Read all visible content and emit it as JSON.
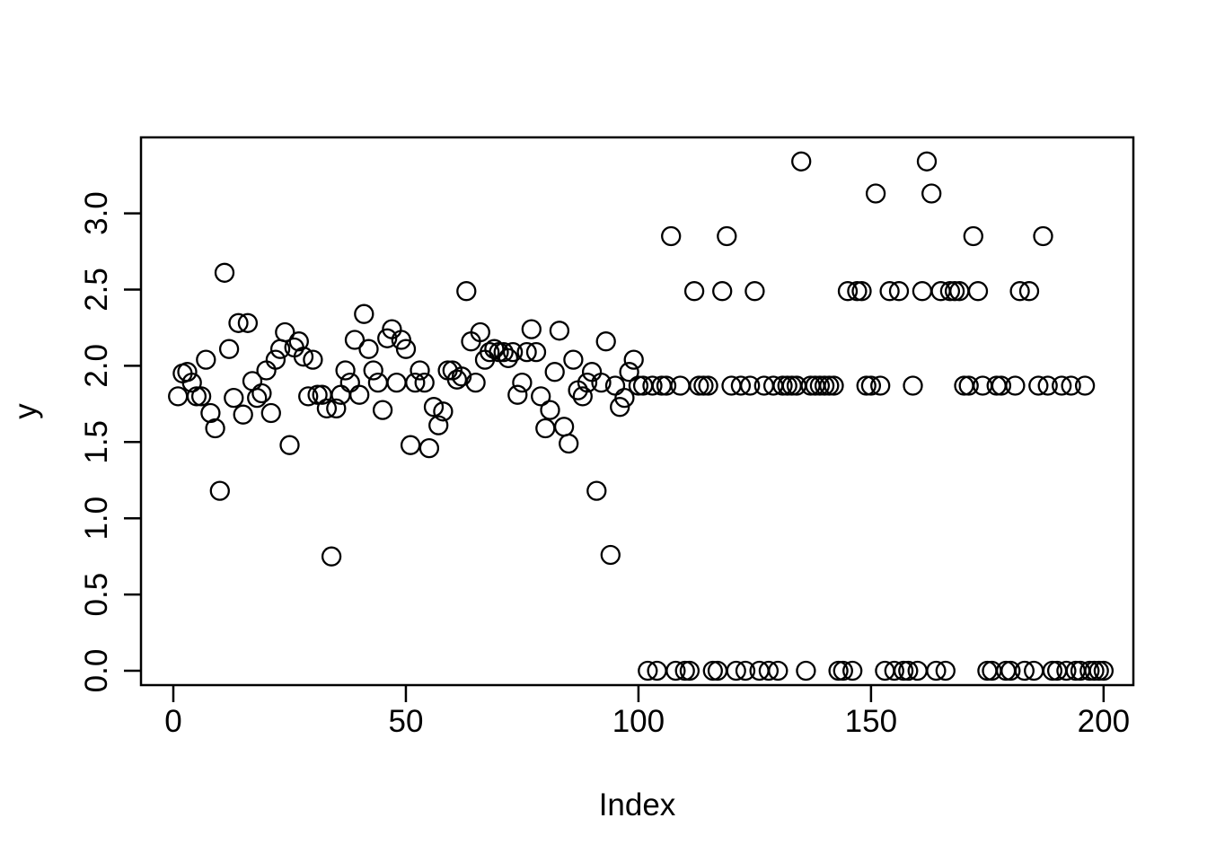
{
  "figure": {
    "background": "#ffffff",
    "foreground": "#000000",
    "marker": "open-circle",
    "marker_color": "#000000"
  },
  "chart_data": {
    "type": "scatter",
    "title": "",
    "xlabel": "Index",
    "ylabel": "y",
    "grid": false,
    "legend": null,
    "xlim": [
      -6.95,
      206.4
    ],
    "ylim": [
      -0.094,
      3.498
    ],
    "x_ticks": [
      0,
      50,
      100,
      150,
      200
    ],
    "x_tick_labels": [
      "0",
      "50",
      "100",
      "150",
      "200"
    ],
    "y_ticks": [
      0.0,
      0.5,
      1.0,
      1.5,
      2.0,
      2.5,
      3.0
    ],
    "y_tick_labels": [
      "0.0",
      "0.5",
      "1.0",
      "1.5",
      "2.0",
      "2.5",
      "3.0"
    ],
    "x": [
      1,
      2,
      3,
      4,
      5,
      6,
      7,
      8,
      9,
      10,
      11,
      12,
      13,
      14,
      15,
      16,
      17,
      18,
      19,
      20,
      21,
      22,
      23,
      24,
      25,
      26,
      27,
      28,
      29,
      30,
      31,
      32,
      33,
      34,
      35,
      36,
      37,
      38,
      39,
      40,
      41,
      42,
      43,
      44,
      45,
      46,
      47,
      48,
      49,
      50,
      51,
      52,
      53,
      54,
      55,
      56,
      57,
      58,
      59,
      60,
      61,
      62,
      63,
      64,
      65,
      66,
      67,
      68,
      69,
      70,
      71,
      72,
      73,
      74,
      75,
      76,
      77,
      78,
      79,
      80,
      81,
      82,
      83,
      84,
      85,
      86,
      87,
      88,
      89,
      90,
      91,
      92,
      93,
      94,
      95,
      96,
      97,
      98,
      99,
      100,
      101,
      102,
      103,
      104,
      105,
      106,
      107,
      108,
      109,
      110,
      111,
      112,
      113,
      114,
      115,
      116,
      117,
      118,
      119,
      120,
      121,
      122,
      123,
      124,
      125,
      126,
      127,
      128,
      129,
      130,
      131,
      132,
      133,
      134,
      135,
      136,
      137,
      138,
      139,
      140,
      141,
      142,
      143,
      144,
      145,
      146,
      147,
      148,
      149,
      150,
      151,
      152,
      153,
      154,
      155,
      156,
      157,
      158,
      159,
      160,
      161,
      162,
      163,
      164,
      165,
      166,
      167,
      168,
      169,
      170,
      171,
      172,
      173,
      174,
      175,
      176,
      177,
      178,
      179,
      180,
      181,
      182,
      183,
      184,
      185,
      186,
      187,
      188,
      189,
      190,
      191,
      192,
      193,
      194,
      195,
      196,
      197,
      198,
      199,
      200
    ],
    "y": [
      1.8,
      1.95,
      1.96,
      1.89,
      1.8,
      1.8,
      2.04,
      1.69,
      1.59,
      1.18,
      2.61,
      2.11,
      1.79,
      2.28,
      1.68,
      2.28,
      1.9,
      1.79,
      1.82,
      1.97,
      1.69,
      2.04,
      2.11,
      2.22,
      1.48,
      2.12,
      2.16,
      2.06,
      1.8,
      2.04,
      1.81,
      1.81,
      1.72,
      0.75,
      1.72,
      1.81,
      1.97,
      1.89,
      2.17,
      1.81,
      2.34,
      2.11,
      1.97,
      1.89,
      1.71,
      2.18,
      2.24,
      1.89,
      2.17,
      2.11,
      1.48,
      1.89,
      1.97,
      1.89,
      1.46,
      1.73,
      1.61,
      1.7,
      1.97,
      1.97,
      1.91,
      1.93,
      2.49,
      2.16,
      1.89,
      2.22,
      2.04,
      2.09,
      2.11,
      2.09,
      2.09,
      2.05,
      2.09,
      1.81,
      1.89,
      2.09,
      2.24,
      2.09,
      1.8,
      1.59,
      1.71,
      1.96,
      2.23,
      1.6,
      1.49,
      2.04,
      1.84,
      1.8,
      1.89,
      1.96,
      1.18,
      1.89,
      2.16,
      0.76,
      1.87,
      1.73,
      1.79,
      1.96,
      2.04,
      1.87,
      1.87,
      0,
      1.87,
      0,
      1.87,
      1.87,
      2.85,
      0,
      1.87,
      0,
      0,
      2.49,
      1.87,
      1.87,
      1.87,
      0,
      0,
      2.49,
      2.85,
      1.87,
      0,
      1.87,
      0,
      1.87,
      2.49,
      0,
      1.87,
      0,
      1.87,
      0,
      1.87,
      1.87,
      1.87,
      1.87,
      3.34,
      0,
      1.87,
      1.87,
      1.87,
      1.87,
      1.87,
      1.87,
      0,
      0,
      2.49,
      0,
      2.49,
      2.49,
      1.87,
      1.87,
      3.13,
      1.87,
      0,
      2.49,
      0,
      2.49,
      0,
      0,
      1.87,
      0,
      2.49,
      3.34,
      3.13,
      0,
      2.49,
      0,
      2.49,
      2.49,
      2.49,
      1.87,
      1.87,
      2.85,
      2.49,
      1.87,
      0,
      0,
      1.87,
      1.87,
      0,
      0,
      1.87,
      2.49,
      0,
      2.49,
      0,
      1.87,
      2.85,
      1.87,
      0,
      0,
      1.87,
      0,
      1.87,
      0,
      0,
      1.87,
      0,
      0,
      0,
      0
    ]
  }
}
